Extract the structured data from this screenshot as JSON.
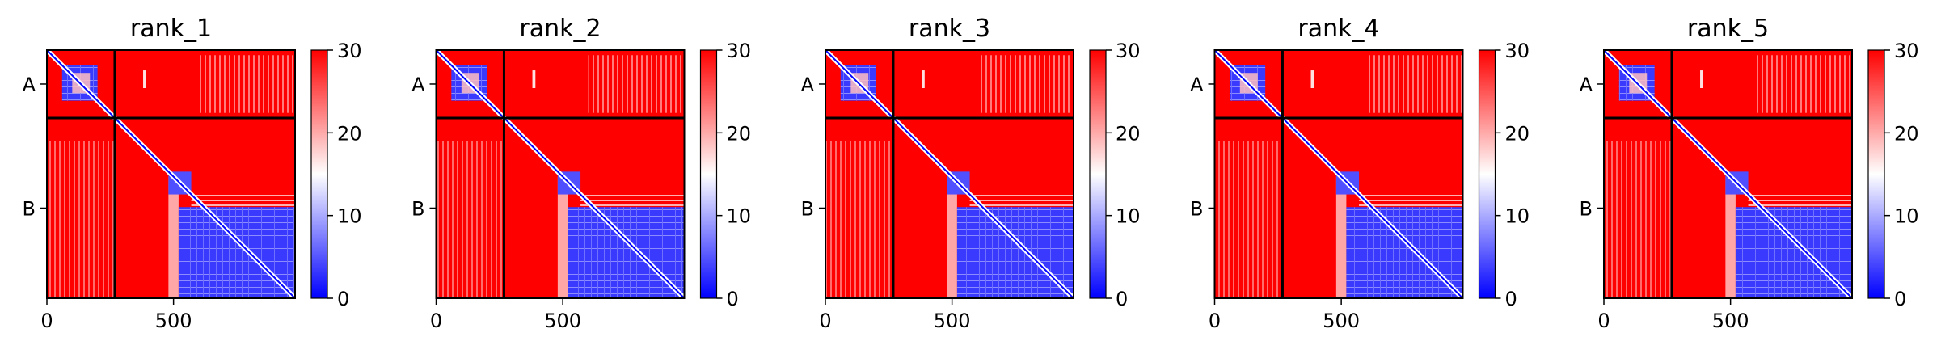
{
  "chart_data": {
    "type": "heatmap",
    "colormap": {
      "name": "bwr",
      "vmin": 0,
      "vmax": 30,
      "stops": [
        "#0000ff",
        "#ffffff",
        "#ff0000"
      ],
      "ticks": [
        0,
        10,
        20,
        30
      ],
      "tick_labels": [
        "0",
        "10",
        "20",
        "30"
      ]
    },
    "x_ticks": [
      0,
      500
    ],
    "x_tick_labels": [
      "0",
      "500"
    ],
    "axis_length": 980,
    "chain_boundary": 268,
    "chains": [
      {
        "label": "A",
        "start": 0,
        "end": 268
      },
      {
        "label": "B",
        "start": 268,
        "end": 980
      }
    ],
    "panels": [
      {
        "title": "rank_1"
      },
      {
        "title": "rank_2"
      },
      {
        "title": "rank_3"
      },
      {
        "title": "rank_4"
      },
      {
        "title": "rank_5"
      }
    ],
    "matrix_description_values": {
      "background_error": 30,
      "chain_A_domain": {
        "start": 60,
        "end": 200,
        "error": 3
      },
      "chain_B_domain": {
        "start": 520,
        "end": 980,
        "error": 3
      },
      "diagonal_error": 0
    }
  }
}
